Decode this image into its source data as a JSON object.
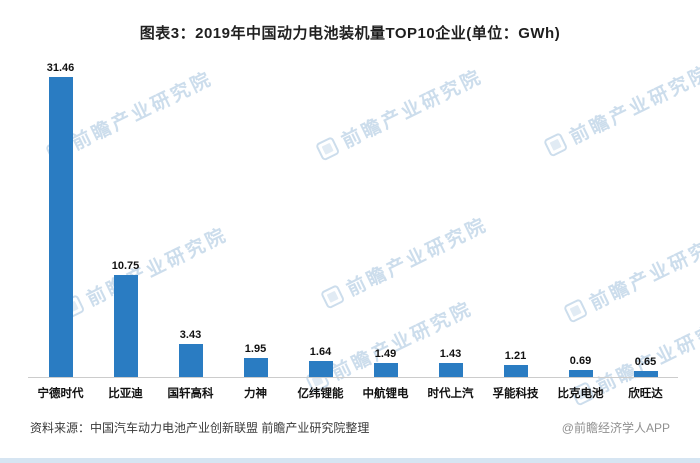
{
  "chart_data": {
    "type": "bar",
    "title": "图表3：2019年中国动力电池装机量TOP10企业(单位：GWh)",
    "categories": [
      "宁德时代",
      "比亚迪",
      "国轩高科",
      "力神",
      "亿纬锂能",
      "中航锂电",
      "时代上汽",
      "孚能科技",
      "比克电池",
      "欣旺达"
    ],
    "values": [
      31.46,
      10.75,
      3.43,
      1.95,
      1.64,
      1.49,
      1.43,
      1.21,
      0.69,
      0.65
    ],
    "unit": "GWh",
    "xlabel": "",
    "ylabel": "",
    "ylim": [
      0,
      32
    ],
    "grid": false,
    "legend": false,
    "bar_color": "#2A7CC2",
    "value_label_color": "#111111"
  },
  "watermark": {
    "text": "前瞻产业研究院",
    "color": "#8FB4D6"
  },
  "footer": {
    "source": "资料来源：中国汽车动力电池产业创新联盟  前瞻产业研究院整理",
    "credit": "@前瞻经济学人APP"
  }
}
